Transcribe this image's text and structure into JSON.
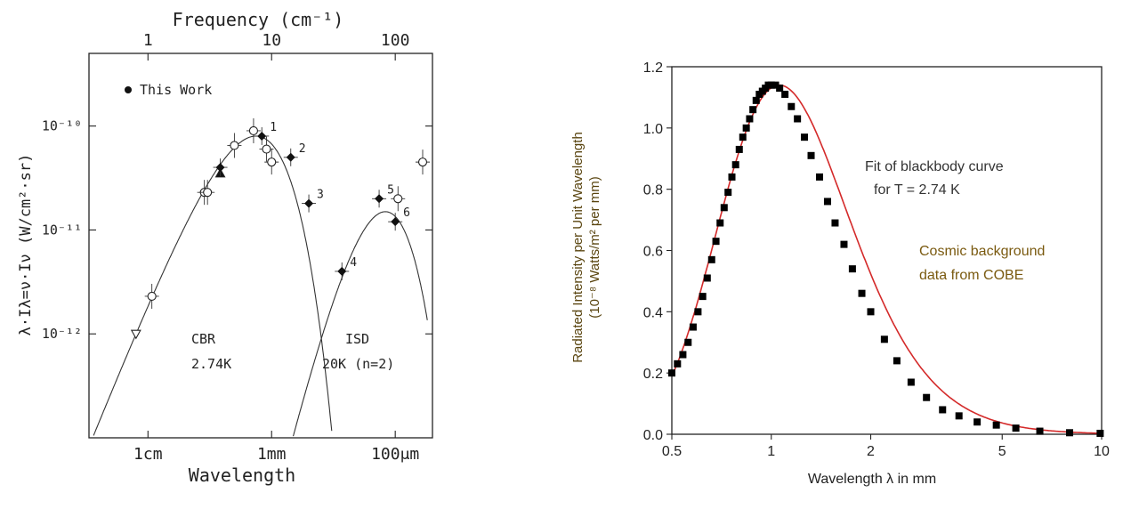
{
  "chart_data": [
    {
      "type": "scatter",
      "title": "",
      "top_axis_label": "Frequency (cm⁻¹)",
      "top_ticks": [
        {
          "value": 1,
          "label": "1"
        },
        {
          "value": 10,
          "label": "10"
        },
        {
          "value": 100,
          "label": "100"
        }
      ],
      "xlabel": "Wavelength",
      "x_ticks": [
        {
          "value": 1.0,
          "label": "1cm"
        },
        {
          "value": 0.1,
          "label": "1mm"
        },
        {
          "value": 0.01,
          "label": "100μm"
        }
      ],
      "ylabel": "λ·Iλ=ν·Iν  (W/cm²·sr)",
      "y_ticks": [
        {
          "value": 1e-10,
          "label": "10⁻¹⁰"
        },
        {
          "value": 1e-11,
          "label": "10⁻¹¹"
        },
        {
          "value": 1e-12,
          "label": "10⁻¹²"
        }
      ],
      "x_unit": "cm (log, decreasing wavelength)",
      "xlim": [
        3.0,
        0.005
      ],
      "ylim": [
        1e-13,
        5e-10
      ],
      "legend": {
        "marker": "filled circle",
        "label": "This Work",
        "position": "top-left"
      },
      "curves": [
        {
          "name": "CBR",
          "label_lines": [
            "CBR",
            "2.74K"
          ],
          "temperature_K": 2.74
        },
        {
          "name": "ISD",
          "label_lines": [
            "ISD",
            "20K (n=2)"
          ],
          "temperature_K": 20
        }
      ],
      "points_this_work": [
        {
          "id": "1",
          "wavelength_cm": 0.12,
          "value": 8e-11
        },
        {
          "id": "2",
          "wavelength_cm": 0.07,
          "value": 5e-11
        },
        {
          "id": "3",
          "wavelength_cm": 0.05,
          "value": 1.8e-11
        },
        {
          "id": "4",
          "wavelength_cm": 0.027,
          "value": 4e-12
        },
        {
          "id": "5",
          "wavelength_cm": 0.0135,
          "value": 2e-11
        },
        {
          "id": "6",
          "wavelength_cm": 0.01,
          "value": 1.2e-11
        },
        {
          "id": "",
          "wavelength_cm": 0.26,
          "value": 4e-11
        }
      ],
      "points_other": [
        {
          "wavelength_cm": 1.25,
          "value": 1e-12,
          "marker": "triangle-down"
        },
        {
          "wavelength_cm": 0.93,
          "value": 2.3e-12,
          "marker": "circle"
        },
        {
          "wavelength_cm": 0.35,
          "value": 2.3e-11,
          "marker": "circle"
        },
        {
          "wavelength_cm": 0.33,
          "value": 2.3e-11,
          "marker": "circle"
        },
        {
          "wavelength_cm": 0.26,
          "value": 3.5e-11,
          "marker": "triangle-up"
        },
        {
          "wavelength_cm": 0.2,
          "value": 6.5e-11,
          "marker": "circle"
        },
        {
          "wavelength_cm": 0.14,
          "value": 9e-11,
          "marker": "circle"
        },
        {
          "wavelength_cm": 0.11,
          "value": 6e-11,
          "marker": "circle"
        },
        {
          "wavelength_cm": 0.1,
          "value": 4.5e-11,
          "marker": "circle"
        },
        {
          "wavelength_cm": 0.0095,
          "value": 2e-11,
          "marker": "circle"
        },
        {
          "wavelength_cm": 0.006,
          "value": 4.5e-11,
          "marker": "circle"
        }
      ]
    },
    {
      "type": "line",
      "title": "",
      "xlabel": "Wavelength λ in mm",
      "ylabel_line1": "Radiated Intensity per Unit Wavelength",
      "ylabel_line2": "(10⁻⁸ Watts/m² per mm)",
      "x_ticks": [
        {
          "value": 0.5,
          "label": "0.5"
        },
        {
          "value": 1,
          "label": "1"
        },
        {
          "value": 2,
          "label": "2"
        },
        {
          "value": 5,
          "label": "5"
        },
        {
          "value": 10,
          "label": "10"
        }
      ],
      "xlim": [
        0.5,
        10
      ],
      "ylim": [
        0,
        1.2
      ],
      "y_ticks": [
        {
          "value": 0.0,
          "label": "0.0"
        },
        {
          "value": 0.2,
          "label": "0.2"
        },
        {
          "value": 0.4,
          "label": "0.4"
        },
        {
          "value": 0.6,
          "label": "0.6"
        },
        {
          "value": 0.8,
          "label": "0.8"
        },
        {
          "value": 1.0,
          "label": "1.0"
        },
        {
          "value": 1.2,
          "label": "1.2"
        }
      ],
      "annotations": [
        {
          "lines": [
            "Fit of blackbody curve",
            "for T = 2.74 K"
          ],
          "color": "#333333"
        },
        {
          "lines": [
            "Cosmic background",
            "data from COBE"
          ],
          "color": "#7a5a10"
        }
      ],
      "series": [
        {
          "name": "Fit of blackbody curve for T = 2.74 K",
          "color": "#d42a2a",
          "temperature_K": 2.74
        },
        {
          "name": "Cosmic background data from COBE",
          "color": "#000000",
          "x": [
            0.5,
            0.52,
            0.54,
            0.56,
            0.58,
            0.6,
            0.62,
            0.64,
            0.66,
            0.68,
            0.7,
            0.72,
            0.74,
            0.76,
            0.78,
            0.8,
            0.82,
            0.84,
            0.86,
            0.88,
            0.9,
            0.92,
            0.94,
            0.96,
            0.98,
            1.0,
            1.03,
            1.06,
            1.1,
            1.15,
            1.2,
            1.26,
            1.32,
            1.4,
            1.48,
            1.56,
            1.66,
            1.76,
            1.88,
            2.0,
            2.2,
            2.4,
            2.65,
            2.95,
            3.3,
            3.7,
            4.2,
            4.8,
            5.5,
            6.5,
            8.0,
            9.9
          ],
          "y": [
            0.2,
            0.23,
            0.26,
            0.3,
            0.35,
            0.4,
            0.45,
            0.51,
            0.57,
            0.63,
            0.69,
            0.74,
            0.79,
            0.84,
            0.88,
            0.93,
            0.97,
            1.0,
            1.03,
            1.06,
            1.09,
            1.11,
            1.12,
            1.13,
            1.14,
            1.14,
            1.14,
            1.13,
            1.11,
            1.07,
            1.03,
            0.97,
            0.91,
            0.84,
            0.76,
            0.69,
            0.62,
            0.54,
            0.46,
            0.4,
            0.31,
            0.24,
            0.17,
            0.12,
            0.08,
            0.06,
            0.04,
            0.03,
            0.02,
            0.01,
            0.005,
            0.003
          ]
        }
      ]
    }
  ]
}
